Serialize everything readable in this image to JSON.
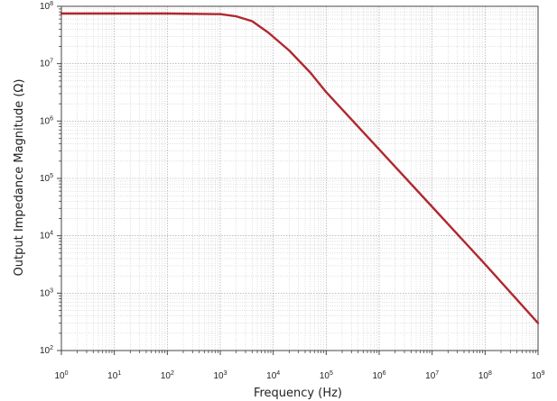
{
  "chart_data": {
    "type": "line",
    "xlabel": "Frequency (Hz)",
    "ylabel": "Output Impedance Magnitude (Ω)",
    "xscale": "log",
    "yscale": "log",
    "xlim": [
      1,
      1000000000
    ],
    "ylim": [
      100,
      100000000
    ],
    "grid": true,
    "x_ticks": [
      {
        "base": "10",
        "exp": "0"
      },
      {
        "base": "10",
        "exp": "1"
      },
      {
        "base": "10",
        "exp": "2"
      },
      {
        "base": "10",
        "exp": "3"
      },
      {
        "base": "10",
        "exp": "4"
      },
      {
        "base": "10",
        "exp": "5"
      },
      {
        "base": "10",
        "exp": "6"
      },
      {
        "base": "10",
        "exp": "7"
      },
      {
        "base": "10",
        "exp": "8"
      },
      {
        "base": "10",
        "exp": "9"
      }
    ],
    "y_ticks": [
      {
        "base": "10",
        "exp": "2"
      },
      {
        "base": "10",
        "exp": "3"
      },
      {
        "base": "10",
        "exp": "4"
      },
      {
        "base": "10",
        "exp": "5"
      },
      {
        "base": "10",
        "exp": "6"
      },
      {
        "base": "10",
        "exp": "7"
      },
      {
        "base": "10",
        "exp": "8"
      }
    ],
    "series": [
      {
        "color": "#b0282f",
        "x": [
          1,
          10,
          100,
          1000,
          2000,
          4000,
          8000,
          20000,
          50000,
          100000,
          1000000,
          10000000,
          100000000,
          1000000000
        ],
        "y": [
          75000000,
          75000000,
          75000000,
          73000000,
          67000000,
          55000000,
          35000000,
          17000000,
          7000000,
          3200000,
          320000,
          32000.0,
          3200,
          300
        ]
      }
    ]
  }
}
